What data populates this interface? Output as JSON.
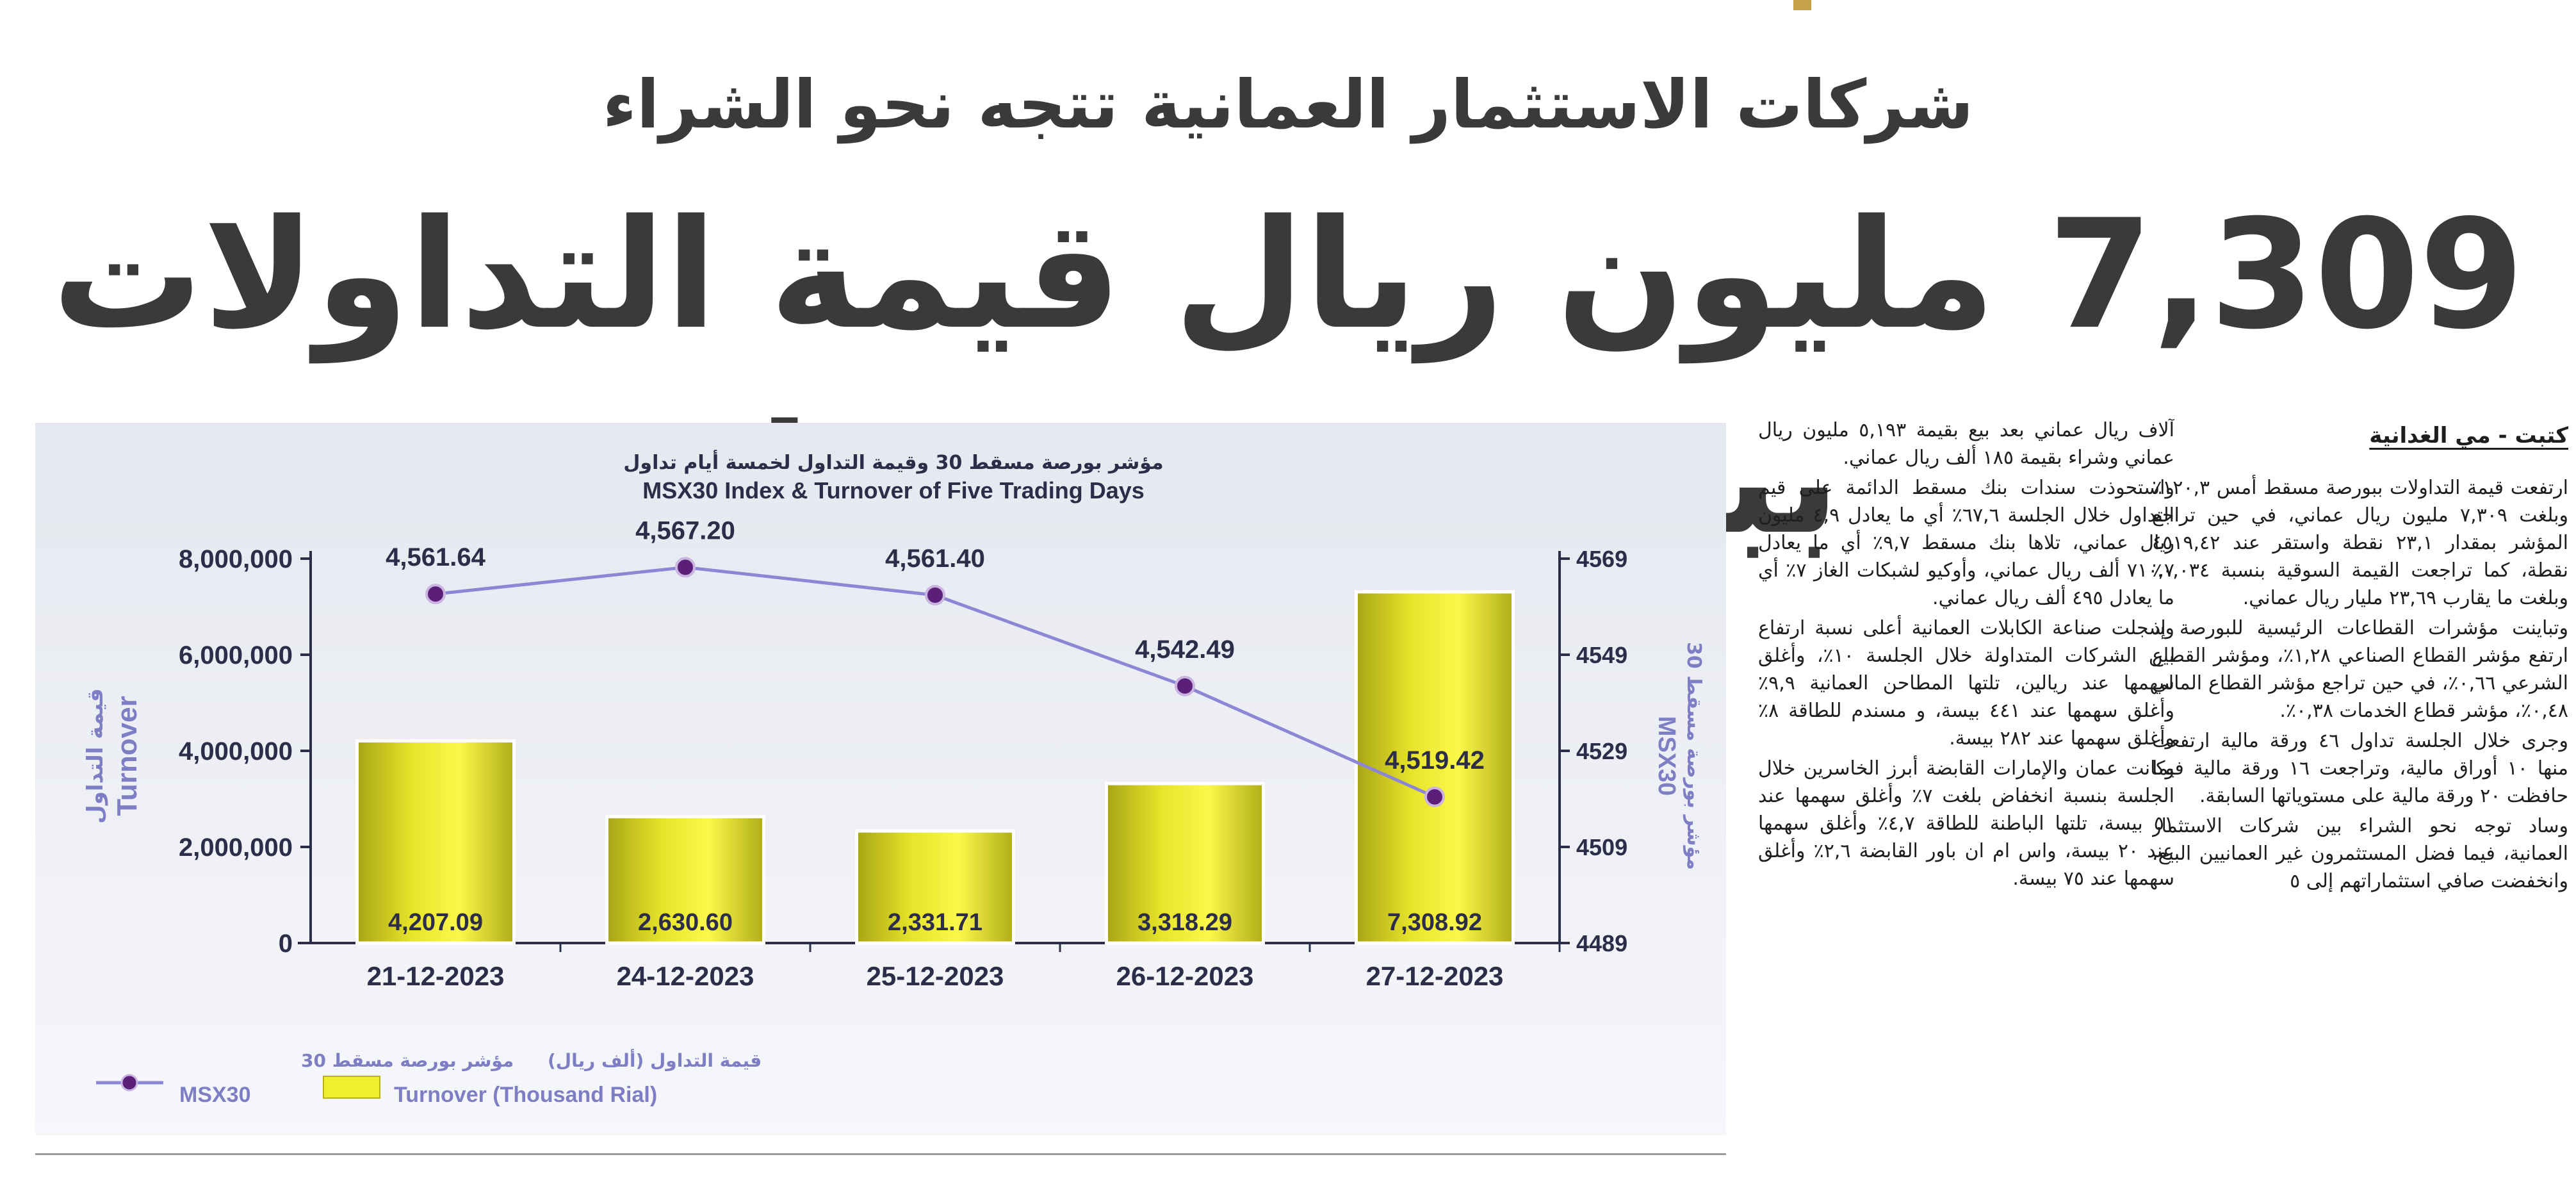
{
  "headline": {
    "subtitle": "شركات الاستثمار العمانية تتجه نحو الشراء",
    "title": "7,309 مليون ريال قيمة التداولات ببورصة مسقط"
  },
  "article": {
    "byline": "كتبت - مي الغدانية",
    "col1": [
      "ارتفعت قيمة التداولات ببورصة مسقط أمس ١٢٠,٣٪ وبلغت ٧,٣٠٩ مليون ريال عماني، في حين تراجع المؤشر بمقدار ٢٣,١ نقطة واستقر عند ٤٥١٩,٤٢ نقطة، كما تراجعت القيمة السوقية بنسبة ٠,٠٣٤٪ وبلغت ما يقارب ٢٣,٦٩ مليار ريال عماني.",
      "وتباينت مؤشرات القطاعات الرئيسية للبورصة إذ ارتفع مؤشر القطاع الصناعي ١,٢٨٪، ومؤشر القطاع الشرعي ٠,٦٦٪، في حين تراجع مؤشر القطاع المالي ٠,٤٨٪، مؤشر قطاع الخدمات ٠,٣٨٪.",
      "وجرى خلال الجلسة تداول ٤٦ ورقة مالية ارتفعت منها ١٠ أوراق مالية، وتراجعت ١٦ ورقة مالية فيما حافظت ٢٠ ورقة مالية على مستوياتها السابقة.",
      "وساد توجه نحو الشراء بين شركات الاستثمار العمانية، فيما فضل المستثمرون غير العمانيين البيع، وانخفضت صافي استثماراتهم إلى ٥"
    ],
    "col2": [
      "آلاف ريال عماني بعد بيع بقيمة ٥,١٩٣ مليون ريال عماني وشراء بقيمة ١٨٥ ألف ريال عماني.",
      "واستحوذت سندات بنك مسقط الدائمة على قيم التداول خلال الجلسة ٦٧,٦٪ أي ما يعادل ٤,٩ مليون ريال عماني، تلاها بنك مسقط ٩,٧٪ أي ما يعادل ٧١٠,٧ ألف ريال عماني، وأوكيو لشبكات الغاز ٧٪ أي ما يعادل ٤٩٥ ألف ريال عماني.",
      "وسجلت صناعة الكابلات العمانية أعلى نسبة ارتفاع بين الشركات المتداولة خلال الجلسة ١٠٪، وأغلق سهمها عند ريالين، تلتها المطاحن العمانية ٩,٩٪ وأغلق سهمها عند ٤٤١ بيسة، و مسندم للطاقة ٨٪ وأغلق سهمها عند ٢٨٢ بيسة.",
      "وكانت عمان والإمارات القابضة أبرز الخاسرين خلال الجلسة بنسبة انخفاض بلغت ٧٪ وأغلق سهمها عند ٥١ بيسة، تلتها الباطنة للطاقة ٤,٧٪ وأغلق سهمها عند ٢٠ بيسة، واس ام ان باور القابضة ٢,٦٪ وأغلق سهمها عند ٧٥ بيسة."
    ]
  },
  "chart_data": {
    "type": "bar+line",
    "title_ar": "مؤشر بورصة مسقط 30 وقيمة التداول لخمسة أيام تداول",
    "title": "MSX30 Index & Turnover of Five Trading Days",
    "categories": [
      "21-12-2023",
      "24-12-2023",
      "25-12-2023",
      "26-12-2023",
      "27-12-2023"
    ],
    "series": [
      {
        "name": "Turnover (Thousand Rial)",
        "name_ar": "قيمة التداول (ألف ريال)",
        "kind": "bar",
        "axis": "left",
        "values": [
          4207.09,
          2630.6,
          2331.71,
          3318.29,
          7308.92
        ],
        "labels": [
          "4,207.09",
          "2,630.60",
          "2,331.71",
          "3,318.29",
          "7,308.92"
        ]
      },
      {
        "name": "MSX30",
        "name_ar": "مؤشر بورصة مسقط 30",
        "kind": "line",
        "axis": "right",
        "values": [
          4561.64,
          4567.2,
          4561.4,
          4542.49,
          4519.42
        ],
        "labels": [
          "4,561.64",
          "4,567.20",
          "4,561.40",
          "4,542.49",
          "4,519.42"
        ]
      }
    ],
    "left_axis": {
      "label_ar": "قيمة التداول",
      "label": "Turnover",
      "ticks": [
        "0",
        "2,000,000",
        "4,000,000",
        "6,000,000",
        "8,000,000"
      ],
      "range": [
        0,
        8000000
      ]
    },
    "right_axis": {
      "label_ar": "مؤشر بورصة مسقط 30",
      "label": "MSX30",
      "ticks": [
        "4489",
        "4509",
        "4529",
        "4549",
        "4569"
      ],
      "range": [
        4489,
        4569
      ]
    },
    "grid": false,
    "legend_position": "bottom-left",
    "colors": {
      "bar_fill": "#f2ef2e",
      "bar_shade": "#b5b21a",
      "line": "#8d86d4",
      "marker": "#5b1f7a",
      "axis_text": "#2d2d4a",
      "axis_title": "#7e7ec4"
    }
  }
}
